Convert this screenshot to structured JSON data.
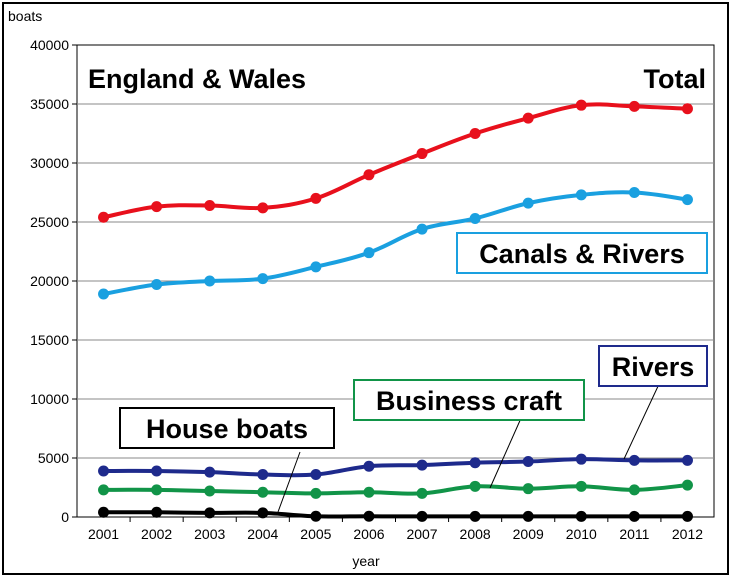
{
  "chart_data": {
    "type": "line",
    "title": "England & Wales",
    "ylabel": "boats",
    "xlabel": "year",
    "ylim": [
      0,
      40000
    ],
    "yticks": [
      0,
      5000,
      10000,
      15000,
      20000,
      25000,
      30000,
      35000,
      40000
    ],
    "grid": true,
    "categories": [
      "2001",
      "2002",
      "2003",
      "2004",
      "2005",
      "2006",
      "2007",
      "2008",
      "2009",
      "2010",
      "2011",
      "2012"
    ],
    "series": [
      {
        "name": "Total",
        "color": "#e8101c",
        "values": [
          25400,
          26300,
          26400,
          26200,
          27000,
          29000,
          30800,
          32500,
          33800,
          34900,
          34800,
          34600
        ]
      },
      {
        "name": "Canals & Rivers",
        "color": "#1aa0e0",
        "values": [
          18900,
          19700,
          20000,
          20200,
          21200,
          22400,
          24400,
          25300,
          26600,
          27300,
          27500,
          26900
        ]
      },
      {
        "name": "Rivers",
        "color": "#1e2a8c",
        "values": [
          3900,
          3900,
          3800,
          3600,
          3600,
          4300,
          4400,
          4600,
          4700,
          4900,
          4800,
          4800
        ]
      },
      {
        "name": "Business craft",
        "color": "#119448",
        "values": [
          2300,
          2300,
          2200,
          2100,
          2000,
          2100,
          2000,
          2600,
          2400,
          2600,
          2300,
          2700
        ]
      },
      {
        "name": "House boats",
        "color": "#000000",
        "values": [
          400,
          400,
          350,
          350,
          60,
          60,
          50,
          50,
          50,
          50,
          50,
          50
        ]
      }
    ]
  }
}
